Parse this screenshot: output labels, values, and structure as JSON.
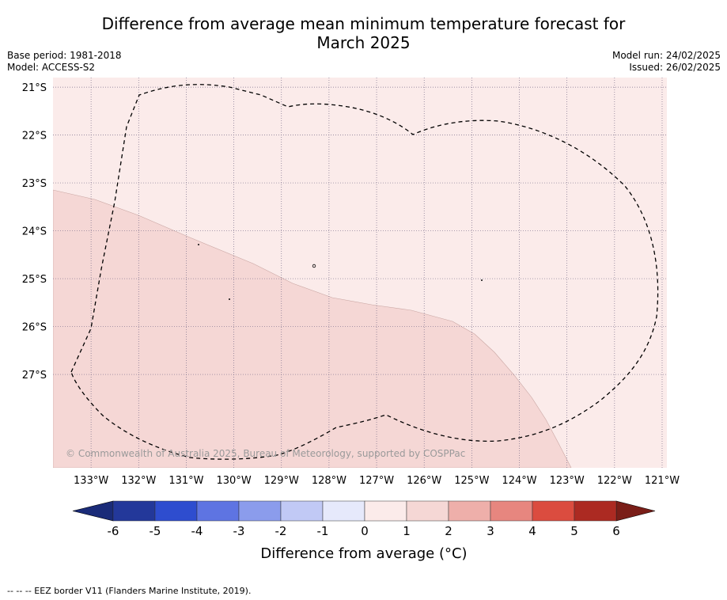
{
  "title": {
    "line1": "Difference from average mean minimum temperature forecast for",
    "line2": "March 2025"
  },
  "meta_left": {
    "base_period": "Base period: 1981-2018",
    "model": "Model: ACCESS-S2"
  },
  "meta_right": {
    "model_run": "Model run: 24/02/2025",
    "issued": "Issued: 26/02/2025"
  },
  "map": {
    "lon_range": [
      -133.8,
      -120.9
    ],
    "lat_range": [
      -28.95,
      -20.8
    ],
    "lon_ticks": [
      {
        "value": -133,
        "label": "133°W"
      },
      {
        "value": -132,
        "label": "132°W"
      },
      {
        "value": -131,
        "label": "131°W"
      },
      {
        "value": -130,
        "label": "130°W"
      },
      {
        "value": -129,
        "label": "129°W"
      },
      {
        "value": -128,
        "label": "128°W"
      },
      {
        "value": -127,
        "label": "127°W"
      },
      {
        "value": -126,
        "label": "126°W"
      },
      {
        "value": -125,
        "label": "125°W"
      },
      {
        "value": -124,
        "label": "124°W"
      },
      {
        "value": -123,
        "label": "123°W"
      },
      {
        "value": -122,
        "label": "122°W"
      },
      {
        "value": -121,
        "label": "121°W"
      }
    ],
    "lat_ticks": [
      {
        "value": -21,
        "label": "21°S"
      },
      {
        "value": -22,
        "label": "22°S"
      },
      {
        "value": -23,
        "label": "23°S"
      },
      {
        "value": -24,
        "label": "24°S"
      },
      {
        "value": -25,
        "label": "25°S"
      },
      {
        "value": -26,
        "label": "26°S"
      },
      {
        "value": -27,
        "label": "27°S"
      }
    ],
    "grid": true,
    "regions": [
      {
        "name": "0 to 1",
        "color": "#fbebea"
      },
      {
        "name": "1 to 2",
        "color": "#f5d7d5"
      }
    ],
    "copyright": "© Commonwealth of Australia 2025, Bureau of Meteorology, supported by COSPPac"
  },
  "colorbar": {
    "ticks": [
      "-6",
      "-5",
      "-4",
      "-3",
      "-2",
      "-1",
      "0",
      "1",
      "2",
      "3",
      "4",
      "5",
      "6"
    ],
    "colors": [
      "#23389a",
      "#2e4dcf",
      "#5e74e2",
      "#8b9cec",
      "#c1c9f5",
      "#e6e9fb",
      "#fbebea",
      "#f5d7d5",
      "#eeafaa",
      "#e7867f",
      "#db4c3f",
      "#ac2a22"
    ],
    "under_color": "#1a2b78",
    "over_color": "#7a1e18",
    "label": "Difference from average (°C)"
  },
  "footer": {
    "legend_text": "-- -- -- EEZ border V11 (Flanders Marine Institute, 2019)."
  }
}
